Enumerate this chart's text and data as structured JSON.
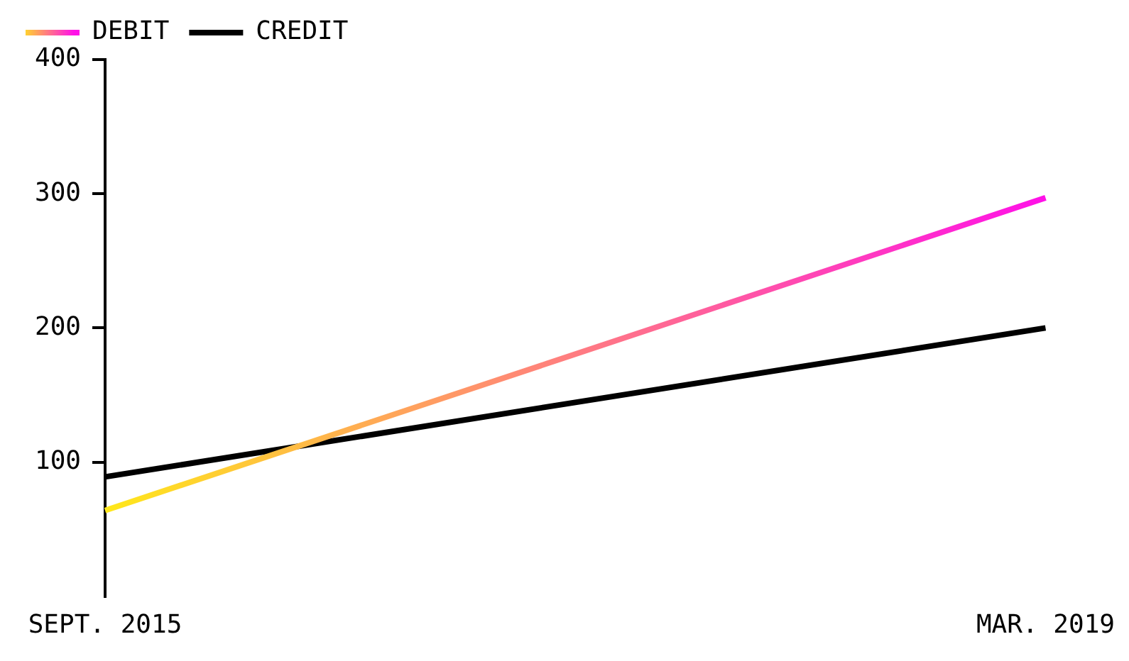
{
  "chart_data": {
    "type": "line",
    "categories": [
      "SEPT. 2015",
      "MAR. 2019"
    ],
    "series": [
      {
        "name": "DEBIT",
        "colors": [
          "#ffe81a",
          "#ff10e8"
        ],
        "values": [
          64,
          297
        ]
      },
      {
        "name": "CREDIT",
        "color": "#000000",
        "values": [
          89,
          200
        ]
      }
    ],
    "ylim": [
      0,
      400
    ],
    "yticks": [
      100,
      200,
      300,
      400
    ],
    "grid": false,
    "legend": "top left",
    "marker": "none",
    "line_style": "solid"
  }
}
